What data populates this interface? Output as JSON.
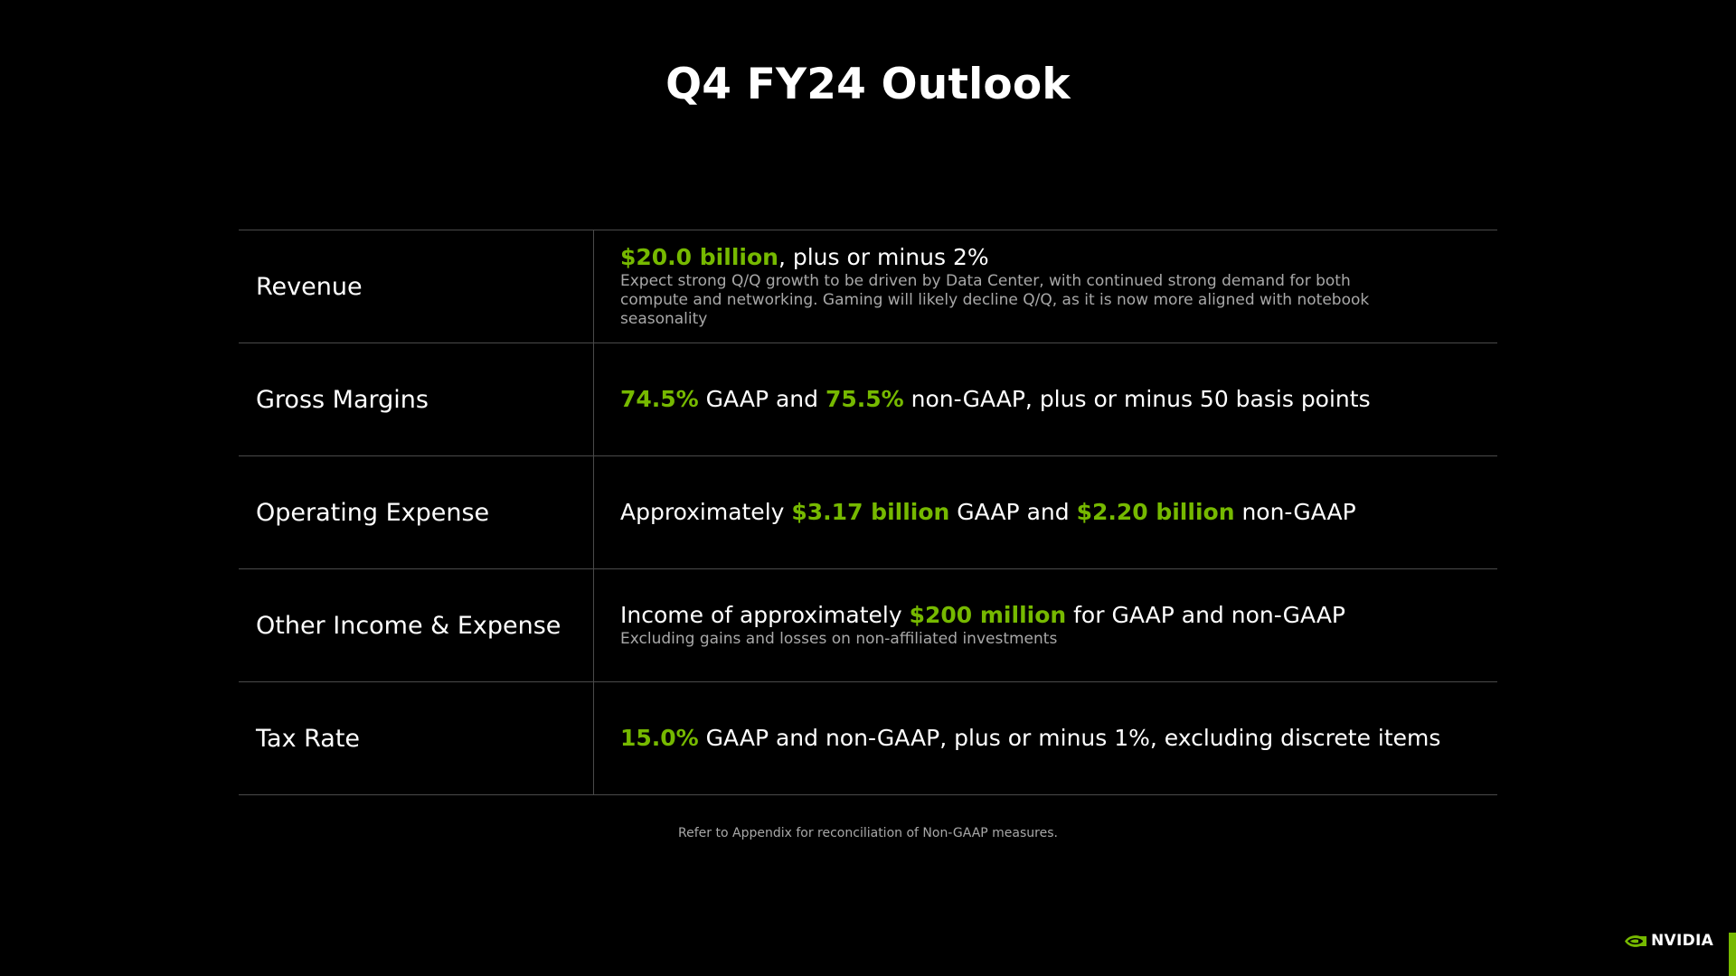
{
  "slide": {
    "title": "Q4 FY24 Outlook",
    "footnote": "Refer to Appendix for reconciliation of Non-GAAP measures.",
    "logo_text": "NVIDIA",
    "accent_color": "#76b900"
  },
  "rows": [
    {
      "label": "Revenue",
      "segments": [
        {
          "text": "$20.0 billion",
          "highlight": true
        },
        {
          "text": ", plus or minus 2%",
          "highlight": false
        }
      ],
      "note": "Expect strong Q/Q growth to be driven by Data Center, with continued strong demand for both compute and networking. Gaming will likely decline Q/Q, as it is now more aligned with notebook seasonality"
    },
    {
      "label": "Gross Margins",
      "segments": [
        {
          "text": "74.5%",
          "highlight": true
        },
        {
          "text": " GAAP and ",
          "highlight": false
        },
        {
          "text": "75.5%",
          "highlight": true
        },
        {
          "text": " non-GAAP, plus or minus 50 basis points",
          "highlight": false
        }
      ],
      "note": ""
    },
    {
      "label": "Operating Expense",
      "segments": [
        {
          "text": "Approximately ",
          "highlight": false
        },
        {
          "text": "$3.17 billion",
          "highlight": true
        },
        {
          "text": " GAAP and ",
          "highlight": false
        },
        {
          "text": "$2.20 billion",
          "highlight": true
        },
        {
          "text": " non-GAAP",
          "highlight": false
        }
      ],
      "note": ""
    },
    {
      "label": "Other Income & Expense",
      "segments": [
        {
          "text": "Income of approximately ",
          "highlight": false
        },
        {
          "text": "$200 million",
          "highlight": true
        },
        {
          "text": " for GAAP and non-GAAP",
          "highlight": false
        }
      ],
      "note": "Excluding gains and losses on non-affiliated investments"
    },
    {
      "label": "Tax Rate",
      "segments": [
        {
          "text": "15.0%",
          "highlight": true
        },
        {
          "text": " GAAP and non-GAAP, plus or minus 1%, excluding discrete items",
          "highlight": false
        }
      ],
      "note": ""
    }
  ]
}
